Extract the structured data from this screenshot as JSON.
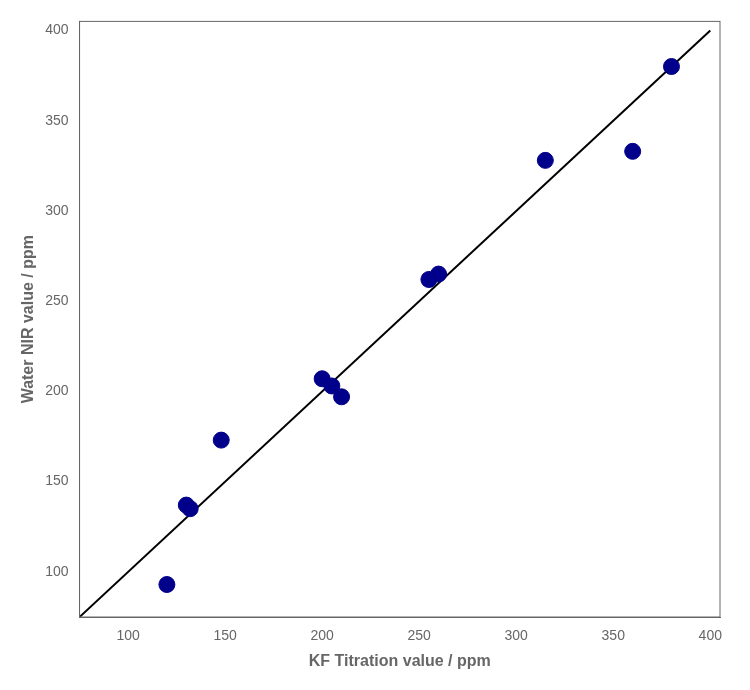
{
  "chart_data": {
    "type": "scatter",
    "xlabel": "KF Titration value / ppm",
    "ylabel": "Water NIR value / ppm",
    "series": [
      {
        "type": "line",
        "color": "#000000",
        "x": [
          75,
          400
        ],
        "values": [
          75,
          400
        ]
      },
      {
        "type": "scatter",
        "color": "#00008B",
        "x": [
          120,
          130,
          132,
          148,
          200,
          205,
          210,
          255,
          260,
          315,
          360,
          380
        ],
        "values": [
          93,
          137,
          135,
          173,
          207,
          203,
          197,
          262,
          265,
          328,
          333,
          380
        ]
      }
    ],
    "xlim": [
      75,
      405
    ],
    "ylim": [
      75,
      405
    ],
    "xticks": [
      100,
      150,
      200,
      250,
      300,
      350,
      400
    ],
    "yticks": [
      100,
      150,
      200,
      250,
      300,
      350,
      400
    ],
    "grid": false
  }
}
